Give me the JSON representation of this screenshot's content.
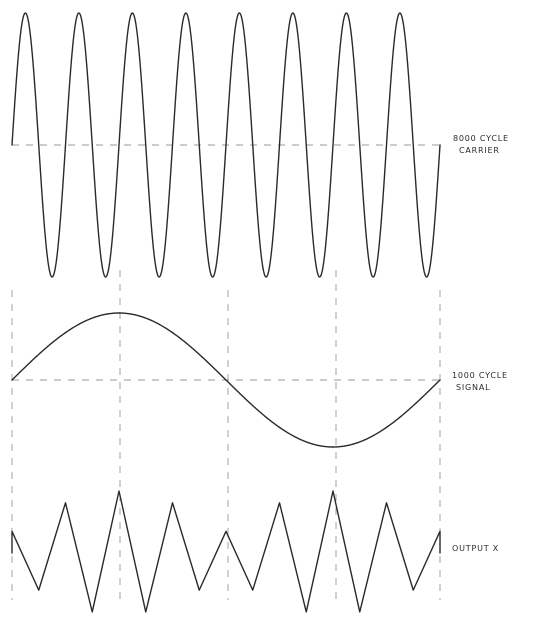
{
  "carrier": {
    "label_lines": [
      "8000 CYCLE",
      "CARRIER"
    ],
    "cycles": 8
  },
  "signal": {
    "label_lines": [
      "1000 CYCLE",
      "SIGNAL"
    ],
    "cycles": 1
  },
  "output": {
    "label_lines": [
      "OUTPUT X"
    ]
  },
  "colors": {
    "trace": "#2a2a2a",
    "guide": "#9a9a9a",
    "background": "#ffffff"
  }
}
